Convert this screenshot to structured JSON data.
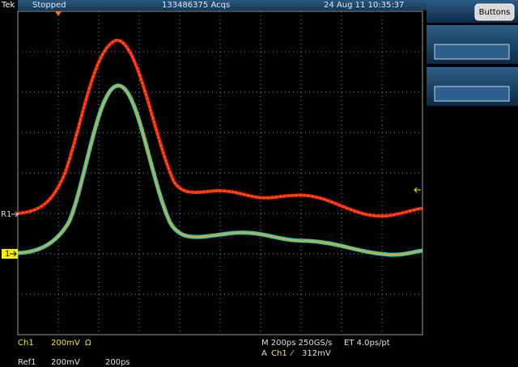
{
  "header": {
    "brand": "Tek",
    "status": "Stopped",
    "acquisitions": "133486375 Acqs",
    "datetime": "24 Aug 11 10:35:37"
  },
  "side_panel": {
    "button": "Buttons"
  },
  "markers": {
    "reference": "R1",
    "channel": "1"
  },
  "readout": {
    "channel": "Ch1",
    "channel_scale": "200mV",
    "channel_coupling": "Ω",
    "timebase": "M 200ps 250GS/s",
    "equivalent_time": "ET 4.0ps/pt",
    "trigger_mode": "A",
    "trigger_source": "Ch1",
    "trigger_slope": "⁄",
    "trigger_level": "312mV",
    "reference": "Ref1",
    "reference_scale": "200mV",
    "reference_time": "200ps"
  }
}
